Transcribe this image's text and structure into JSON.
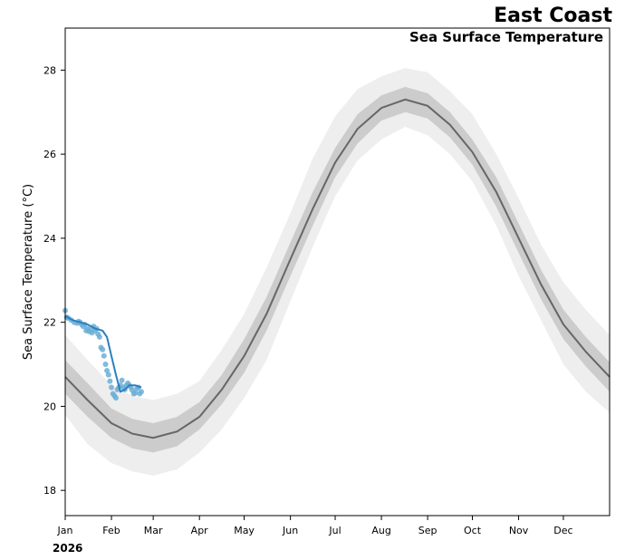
{
  "chart_data": {
    "type": "line",
    "title": "East Coast",
    "subtitle": "Sea Surface Temperature",
    "xlabel": "",
    "ylabel": "Sea Surface Temperature ($^\\circ$C)",
    "ylabel_display": "Sea Surface Temperature (°C)",
    "year_label": "2026",
    "xlim": [
      0,
      365
    ],
    "ylim": [
      17.4,
      29.0
    ],
    "x_ticks": [
      {
        "label": "Jan",
        "day": 0
      },
      {
        "label": "Feb",
        "day": 31
      },
      {
        "label": "Mar",
        "day": 59
      },
      {
        "label": "Apr",
        "day": 90
      },
      {
        "label": "May",
        "day": 120
      },
      {
        "label": "Jun",
        "day": 151
      },
      {
        "label": "Jul",
        "day": 181
      },
      {
        "label": "Aug",
        "day": 212
      },
      {
        "label": "Sep",
        "day": 243
      },
      {
        "label": "Oct",
        "day": 273
      },
      {
        "label": "Nov",
        "day": 304
      },
      {
        "label": "Dec",
        "day": 334
      }
    ],
    "y_ticks": [
      18,
      20,
      22,
      24,
      26,
      28
    ],
    "climatology": {
      "name": "Climatological mean",
      "color": "#666666",
      "days": [
        0,
        15,
        31,
        45,
        59,
        75,
        90,
        105,
        120,
        135,
        151,
        166,
        181,
        196,
        212,
        228,
        243,
        258,
        273,
        289,
        304,
        319,
        334,
        349,
        365
      ],
      "mean": [
        20.7,
        20.15,
        19.6,
        19.35,
        19.25,
        19.4,
        19.75,
        20.4,
        21.2,
        22.2,
        23.5,
        24.7,
        25.8,
        26.6,
        27.1,
        27.3,
        27.15,
        26.7,
        26.05,
        25.1,
        24.0,
        22.9,
        21.95,
        21.3,
        20.7
      ],
      "inner_band_color": "#cccccc",
      "inner_low": [
        20.3,
        19.75,
        19.25,
        19.0,
        18.9,
        19.05,
        19.45,
        20.05,
        20.8,
        21.8,
        23.1,
        24.3,
        25.45,
        26.25,
        26.8,
        27.0,
        26.85,
        26.4,
        25.75,
        24.75,
        23.65,
        22.55,
        21.6,
        20.95,
        20.35
      ],
      "inner_high": [
        21.1,
        20.55,
        19.95,
        19.7,
        19.6,
        19.75,
        20.1,
        20.75,
        21.6,
        22.6,
        23.9,
        25.1,
        26.15,
        26.95,
        27.4,
        27.6,
        27.45,
        27.0,
        26.35,
        25.45,
        24.35,
        23.25,
        22.3,
        21.65,
        21.05
      ],
      "outer_band_color": "#eeeeee",
      "outer_low": [
        19.8,
        19.1,
        18.65,
        18.45,
        18.35,
        18.5,
        18.9,
        19.45,
        20.2,
        21.1,
        22.5,
        23.8,
        25.0,
        25.85,
        26.35,
        26.65,
        26.45,
        26.0,
        25.35,
        24.3,
        23.1,
        22.05,
        21.0,
        20.35,
        19.85
      ],
      "outer_high": [
        21.7,
        21.1,
        20.5,
        20.25,
        20.15,
        20.3,
        20.6,
        21.35,
        22.2,
        23.3,
        24.6,
        25.9,
        26.9,
        27.55,
        27.85,
        28.05,
        27.95,
        27.5,
        26.95,
        26.0,
        24.95,
        23.85,
        22.95,
        22.3,
        21.7
      ]
    },
    "observations": {
      "name": "2026 observed",
      "color": "#2f7ebd",
      "point_color": "#6baed6",
      "smoothed_days": [
        0,
        5,
        10,
        15,
        20,
        25,
        28,
        31,
        34,
        37,
        40,
        43,
        47,
        51
      ],
      "smoothed_values": [
        22.15,
        22.05,
        22.0,
        21.95,
        21.85,
        21.8,
        21.65,
        21.2,
        20.75,
        20.35,
        20.4,
        20.5,
        20.5,
        20.45
      ],
      "point_days": [
        0,
        1,
        2,
        4,
        6,
        8,
        9,
        10,
        11,
        12,
        13,
        14,
        15,
        16,
        17,
        18,
        19,
        20,
        21,
        22,
        23,
        24,
        25,
        26,
        27,
        28,
        29,
        30,
        31,
        32,
        33,
        34,
        35,
        36,
        37,
        38,
        39,
        40,
        41,
        42,
        43,
        44,
        45,
        46,
        47,
        48,
        49,
        50,
        51
      ],
      "point_values": [
        22.28,
        22.12,
        22.1,
        22.05,
        22.0,
        21.98,
        22.02,
        22.0,
        21.95,
        21.9,
        21.95,
        21.8,
        21.85,
        21.78,
        21.82,
        21.75,
        21.9,
        21.8,
        21.85,
        21.72,
        21.65,
        21.4,
        21.35,
        21.2,
        21.0,
        20.85,
        20.75,
        20.6,
        20.45,
        20.3,
        20.25,
        20.2,
        20.4,
        20.45,
        20.5,
        20.62,
        20.45,
        20.4,
        20.5,
        20.55,
        20.5,
        20.45,
        20.38,
        20.3,
        20.32,
        20.42,
        20.45,
        20.3,
        20.35
      ]
    }
  }
}
